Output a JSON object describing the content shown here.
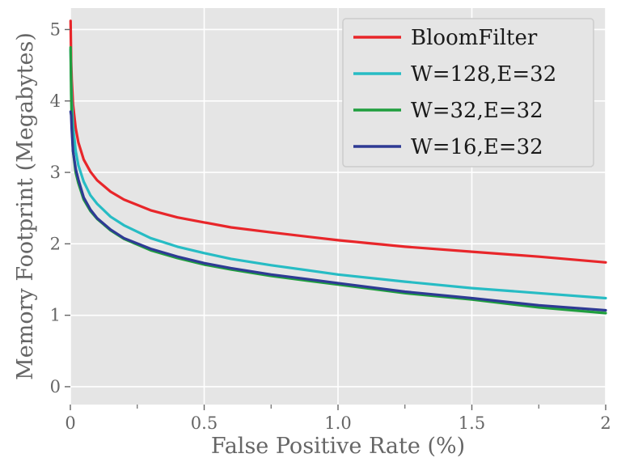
{
  "chart_data": {
    "type": "line",
    "xlabel": "False Positive Rate (%)",
    "ylabel": "Memory Footprint (Megabytes)",
    "xlim": [
      0,
      2
    ],
    "ylim": [
      -0.25,
      5.3
    ],
    "x_ticks": [
      0,
      0.5,
      1.0,
      1.5,
      2
    ],
    "x_tick_labels": [
      "0",
      "0.5",
      "1.0",
      "1.5",
      "2"
    ],
    "x_minor_ticks": [
      0.25,
      0.75,
      1.25,
      1.75
    ],
    "y_ticks": [
      0,
      1,
      2,
      3,
      4,
      5
    ],
    "y_tick_labels": [
      "0",
      "1",
      "2",
      "3",
      "4",
      "5"
    ],
    "grid": true,
    "legend_position": "top-right",
    "x": [
      0.001,
      0.003,
      0.005,
      0.01,
      0.02,
      0.03,
      0.05,
      0.075,
      0.1,
      0.15,
      0.2,
      0.3,
      0.4,
      0.5,
      0.6,
      0.75,
      1.0,
      1.25,
      1.5,
      1.75,
      2.0
    ],
    "series": [
      {
        "name": "BloomFilter",
        "color": "#e8262a",
        "values": [
          5.12,
          4.55,
          4.3,
          3.95,
          3.62,
          3.42,
          3.18,
          3.01,
          2.89,
          2.73,
          2.62,
          2.47,
          2.37,
          2.3,
          2.23,
          2.16,
          2.05,
          1.96,
          1.89,
          1.82,
          1.74
        ]
      },
      {
        "name": "W=128,E=32",
        "color": "#27bcc4",
        "values": [
          4.72,
          4.3,
          4.0,
          3.65,
          3.3,
          3.1,
          2.87,
          2.68,
          2.56,
          2.38,
          2.26,
          2.08,
          1.96,
          1.87,
          1.79,
          1.7,
          1.57,
          1.47,
          1.38,
          1.31,
          1.24
        ]
      },
      {
        "name": "W=32,E=32",
        "color": "#1f9e3e",
        "values": [
          4.75,
          4.1,
          3.7,
          3.3,
          3.0,
          2.85,
          2.62,
          2.46,
          2.35,
          2.19,
          2.07,
          1.91,
          1.8,
          1.71,
          1.64,
          1.55,
          1.43,
          1.31,
          1.22,
          1.11,
          1.03
        ]
      },
      {
        "name": "W=16,E=32",
        "color": "#2e3a94",
        "values": [
          3.85,
          3.8,
          3.6,
          3.3,
          3.05,
          2.9,
          2.65,
          2.48,
          2.36,
          2.2,
          2.08,
          1.93,
          1.82,
          1.73,
          1.66,
          1.57,
          1.45,
          1.33,
          1.24,
          1.14,
          1.07
        ]
      }
    ]
  }
}
